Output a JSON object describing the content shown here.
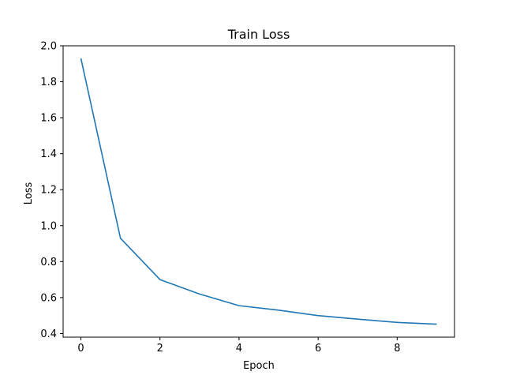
{
  "chart_data": {
    "type": "line",
    "title": "Train Loss",
    "xlabel": "Epoch",
    "ylabel": "Loss",
    "x": [
      0,
      1,
      2,
      3,
      4,
      5,
      6,
      7,
      8,
      9
    ],
    "series": [
      {
        "values": [
          1.93,
          0.93,
          0.7,
          0.62,
          0.555,
          0.53,
          0.5,
          0.48,
          0.462,
          0.452
        ],
        "color": "#1f77b4"
      }
    ],
    "xlim": [
      -0.45,
      9.45
    ],
    "ylim": [
      0.38,
      2.0
    ],
    "xticks": [
      0,
      2,
      4,
      6,
      8
    ],
    "xtick_labels": [
      "0",
      "2",
      "4",
      "6",
      "8"
    ],
    "yticks": [
      0.4,
      0.6,
      0.8,
      1.0,
      1.2,
      1.4,
      1.6,
      1.8,
      2.0
    ],
    "ytick_labels": [
      "0.4",
      "0.6",
      "0.8",
      "1.0",
      "1.2",
      "1.4",
      "1.6",
      "1.8",
      "2.0"
    ],
    "grid": false,
    "legend": "none"
  }
}
